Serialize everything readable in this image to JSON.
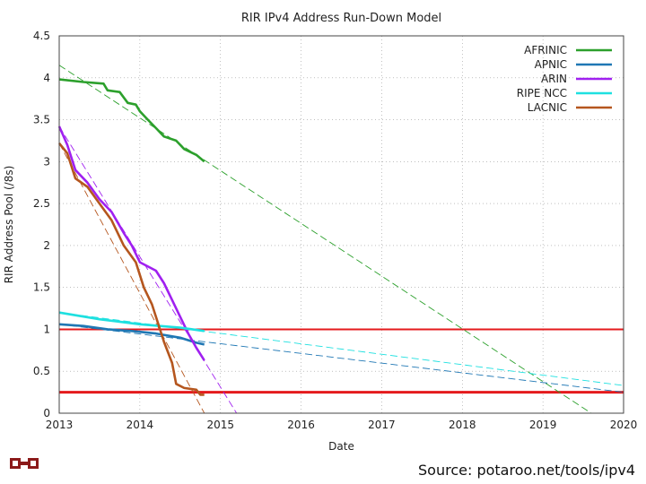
{
  "source_text": "Source: potaroo.net/tools/ipv4",
  "chart_data": {
    "type": "line",
    "title": "RIR IPv4 Address Run-Down Model",
    "xlabel": "Date",
    "ylabel": "RIR Address Pool (/8s)",
    "xlim": [
      2013,
      2020
    ],
    "ylim": [
      0,
      4.5
    ],
    "x_ticks": [
      "2013",
      "2014",
      "2015",
      "2016",
      "2017",
      "2018",
      "2019",
      "2020"
    ],
    "y_ticks": [
      "0",
      "0.5",
      "1",
      "1.5",
      "2",
      "2.5",
      "3",
      "3.5",
      "4",
      "4.5"
    ],
    "grid": true,
    "legend_position": "top-right",
    "thresholds": [
      {
        "name": "threshold-1",
        "value": 1.0,
        "color": "#e41a1c"
      },
      {
        "name": "threshold-0.25",
        "value": 0.25,
        "color": "#e41a1c"
      }
    ],
    "series": [
      {
        "name": "AFRINIC",
        "color": "#2ca02c",
        "data": [
          [
            2013.0,
            3.98
          ],
          [
            2013.3,
            3.95
          ],
          [
            2013.55,
            3.93
          ],
          [
            2013.6,
            3.85
          ],
          [
            2013.75,
            3.83
          ],
          [
            2013.85,
            3.7
          ],
          [
            2013.95,
            3.68
          ],
          [
            2014.0,
            3.6
          ],
          [
            2014.1,
            3.5
          ],
          [
            2014.2,
            3.4
          ],
          [
            2014.3,
            3.3
          ],
          [
            2014.45,
            3.25
          ],
          [
            2014.55,
            3.15
          ],
          [
            2014.7,
            3.08
          ],
          [
            2014.8,
            3.0
          ]
        ],
        "projection": [
          [
            2013.0,
            4.15
          ],
          [
            2019.6,
            0.0
          ]
        ]
      },
      {
        "name": "APNIC",
        "color": "#1f77b4",
        "data": [
          [
            2013.0,
            1.06
          ],
          [
            2013.3,
            1.04
          ],
          [
            2013.6,
            1.0
          ],
          [
            2013.9,
            0.98
          ],
          [
            2014.2,
            0.95
          ],
          [
            2014.5,
            0.9
          ],
          [
            2014.7,
            0.84
          ],
          [
            2014.8,
            0.82
          ]
        ],
        "projection": [
          [
            2013.0,
            1.06
          ],
          [
            2020.0,
            0.25
          ]
        ]
      },
      {
        "name": "ARIN",
        "color": "#a020f0",
        "data": [
          [
            2013.0,
            3.42
          ],
          [
            2013.1,
            3.2
          ],
          [
            2013.2,
            2.9
          ],
          [
            2013.35,
            2.75
          ],
          [
            2013.5,
            2.55
          ],
          [
            2013.65,
            2.4
          ],
          [
            2013.8,
            2.15
          ],
          [
            2013.9,
            2.0
          ],
          [
            2014.0,
            1.8
          ],
          [
            2014.2,
            1.7
          ],
          [
            2014.3,
            1.55
          ],
          [
            2014.4,
            1.35
          ],
          [
            2014.5,
            1.15
          ],
          [
            2014.6,
            0.95
          ],
          [
            2014.7,
            0.78
          ],
          [
            2014.8,
            0.63
          ]
        ],
        "projection": [
          [
            2013.0,
            3.42
          ],
          [
            2015.2,
            0.0
          ]
        ]
      },
      {
        "name": "RIPE NCC",
        "color": "#1ee0e0",
        "data": [
          [
            2013.0,
            1.2
          ],
          [
            2013.5,
            1.12
          ],
          [
            2014.0,
            1.06
          ],
          [
            2014.5,
            1.02
          ],
          [
            2014.8,
            0.98
          ]
        ],
        "projection": [
          [
            2013.0,
            1.2
          ],
          [
            2020.0,
            0.33
          ]
        ]
      },
      {
        "name": "LACNIC",
        "color": "#b5561e",
        "data": [
          [
            2013.0,
            3.22
          ],
          [
            2013.1,
            3.1
          ],
          [
            2013.2,
            2.8
          ],
          [
            2013.35,
            2.7
          ],
          [
            2013.5,
            2.5
          ],
          [
            2013.65,
            2.3
          ],
          [
            2013.8,
            2.0
          ],
          [
            2013.95,
            1.8
          ],
          [
            2014.05,
            1.5
          ],
          [
            2014.15,
            1.3
          ],
          [
            2014.25,
            1.0
          ],
          [
            2014.3,
            0.85
          ],
          [
            2014.4,
            0.6
          ],
          [
            2014.45,
            0.35
          ],
          [
            2014.55,
            0.3
          ],
          [
            2014.7,
            0.28
          ],
          [
            2014.75,
            0.22
          ],
          [
            2014.8,
            0.22
          ]
        ],
        "projection": [
          [
            2013.0,
            3.22
          ],
          [
            2014.8,
            0.0
          ]
        ]
      }
    ]
  }
}
